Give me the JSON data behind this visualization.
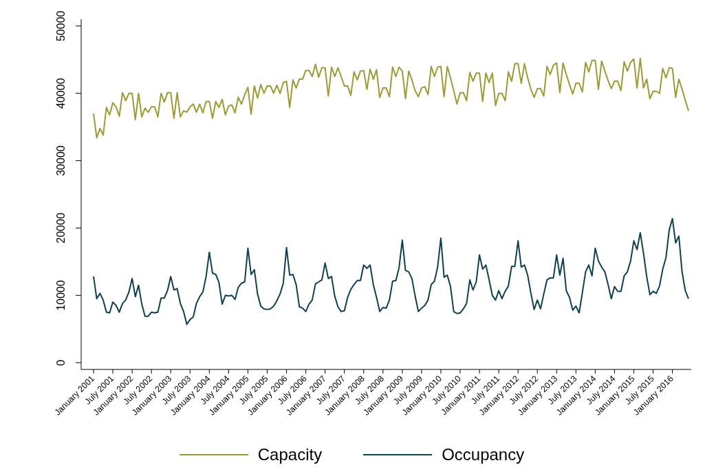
{
  "chart_data": {
    "type": "line",
    "categories": [
      "January 2001",
      null,
      null,
      null,
      null,
      null,
      "July 2001",
      null,
      null,
      null,
      null,
      null,
      "January 2002",
      null,
      null,
      null,
      null,
      null,
      "July 2002",
      null,
      null,
      null,
      null,
      null,
      "January 2003",
      null,
      null,
      null,
      null,
      null,
      "July 2003",
      null,
      null,
      null,
      null,
      null,
      "January 2004",
      null,
      null,
      null,
      null,
      null,
      "July 2004",
      null,
      null,
      null,
      null,
      null,
      "January 2005",
      null,
      null,
      null,
      null,
      null,
      "July 2005",
      null,
      null,
      null,
      null,
      null,
      "January 2006",
      null,
      null,
      null,
      null,
      null,
      "July 2006",
      null,
      null,
      null,
      null,
      null,
      "January 2007",
      null,
      null,
      null,
      null,
      null,
      "July 2007",
      null,
      null,
      null,
      null,
      null,
      "January 2008",
      null,
      null,
      null,
      null,
      null,
      "July 2008",
      null,
      null,
      null,
      null,
      null,
      "January 2009",
      null,
      null,
      null,
      null,
      null,
      "July 2009",
      null,
      null,
      null,
      null,
      null,
      "January 2010",
      null,
      null,
      null,
      null,
      null,
      "July 2010",
      null,
      null,
      null,
      null,
      null,
      "January 2011",
      null,
      null,
      null,
      null,
      null,
      "July 2011",
      null,
      null,
      null,
      null,
      null,
      "January 2012",
      null,
      null,
      null,
      null,
      null,
      "July 2012",
      null,
      null,
      null,
      null,
      null,
      "January 2013",
      null,
      null,
      null,
      null,
      null,
      "July 2013",
      null,
      null,
      null,
      null,
      null,
      "January 2014",
      null,
      null,
      null,
      null,
      null,
      "July 2014",
      null,
      null,
      null,
      null,
      null,
      "January 2015",
      null,
      null,
      null,
      null,
      null,
      "July 2015",
      null,
      null,
      null,
      null,
      null,
      "January 2016",
      null,
      null,
      null,
      null,
      null
    ],
    "series": [
      {
        "name": "Capacity",
        "color": "#9b9b30",
        "values": [
          37000,
          33400,
          34800,
          33800,
          37900,
          36800,
          38600,
          38000,
          36600,
          40100,
          38900,
          40000,
          40000,
          36100,
          40000,
          36500,
          37800,
          37200,
          38000,
          38000,
          36500,
          40000,
          38700,
          40100,
          40100,
          36300,
          40100,
          36500,
          37400,
          37200,
          38000,
          38400,
          37200,
          38400,
          37100,
          38800,
          38800,
          36300,
          38800,
          37900,
          39100,
          36800,
          38100,
          38300,
          37100,
          39400,
          38400,
          39800,
          40900,
          36900,
          41100,
          39300,
          41300,
          40000,
          41100,
          41100,
          40000,
          41200,
          40000,
          41600,
          41800,
          37900,
          42000,
          40800,
          42100,
          42100,
          43400,
          43400,
          42500,
          44300,
          42400,
          43800,
          43800,
          39600,
          43900,
          42500,
          43800,
          42500,
          41100,
          41100,
          39700,
          43200,
          42000,
          43300,
          43400,
          40600,
          43600,
          42100,
          43500,
          39400,
          40800,
          40800,
          39500,
          43900,
          42500,
          43900,
          43300,
          39200,
          43300,
          42000,
          40400,
          39500,
          40800,
          41000,
          39800,
          44000,
          42500,
          43900,
          44000,
          39500,
          44000,
          42300,
          40400,
          38400,
          40100,
          40100,
          38900,
          43100,
          41800,
          43000,
          43000,
          38800,
          43000,
          41600,
          43000,
          38200,
          40000,
          40000,
          38900,
          43200,
          41800,
          44400,
          44400,
          41500,
          44400,
          42300,
          40600,
          39400,
          40700,
          40700,
          39600,
          44000,
          42800,
          44200,
          44500,
          40100,
          44500,
          42800,
          41300,
          39900,
          41500,
          41500,
          40200,
          44600,
          43200,
          44900,
          44900,
          40600,
          44800,
          43300,
          41900,
          40700,
          41800,
          41800,
          40400,
          44700,
          43300,
          44600,
          45100,
          40800,
          45200,
          40800,
          42100,
          39200,
          40300,
          40300,
          40000,
          43700,
          42300,
          43800,
          43700,
          39400,
          42100,
          40600,
          39000,
          37400
        ]
      },
      {
        "name": "Occupancy",
        "color": "#0b4050",
        "values": [
          12800,
          9500,
          10300,
          9300,
          7500,
          7400,
          9000,
          8500,
          7500,
          8800,
          9300,
          10500,
          12500,
          9800,
          11500,
          8700,
          6900,
          6900,
          7500,
          7400,
          7500,
          9600,
          9600,
          10700,
          12800,
          10800,
          11000,
          8800,
          7600,
          5700,
          6400,
          6800,
          8800,
          9800,
          10500,
          12800,
          16400,
          13300,
          13100,
          11900,
          8700,
          10000,
          9900,
          10000,
          9400,
          11200,
          11800,
          12000,
          17000,
          13100,
          13800,
          10200,
          8400,
          8000,
          7900,
          8000,
          8400,
          9200,
          10200,
          11800,
          17100,
          13000,
          13100,
          11600,
          8300,
          8100,
          7600,
          8700,
          9300,
          11700,
          12000,
          12300,
          14800,
          12500,
          12800,
          9900,
          8300,
          7600,
          7700,
          9700,
          10900,
          11600,
          12200,
          12200,
          14500,
          14000,
          14500,
          11600,
          9700,
          7600,
          8200,
          8100,
          9300,
          12100,
          12200,
          14100,
          18200,
          13700,
          13500,
          12500,
          9900,
          7600,
          8100,
          8500,
          9300,
          11600,
          12100,
          14200,
          18500,
          12700,
          13000,
          11300,
          7600,
          7300,
          7400,
          8000,
          8800,
          12300,
          10800,
          12000,
          16000,
          13900,
          14500,
          12300,
          10000,
          9300,
          10700,
          9500,
          10600,
          11400,
          14300,
          14300,
          18100,
          14200,
          14500,
          13000,
          10300,
          7900,
          9300,
          8000,
          10200,
          12300,
          12600,
          12600,
          16000,
          13000,
          15500,
          10700,
          9700,
          7800,
          8400,
          7400,
          10400,
          13500,
          14500,
          12900,
          17000,
          15100,
          14200,
          13500,
          11600,
          9500,
          11300,
          10600,
          10600,
          12900,
          13500,
          15100,
          18100,
          16800,
          19300,
          16300,
          12800,
          10100,
          10600,
          10300,
          11400,
          13900,
          15600,
          19700,
          21400,
          17800,
          18800,
          13500,
          10700,
          9500
        ]
      }
    ],
    "ylim": [
      -1000,
      51000
    ],
    "yticks": [
      0,
      10000,
      20000,
      30000,
      40000,
      50000
    ],
    "grid": false,
    "legend": "bottom",
    "line_style": "solid"
  }
}
